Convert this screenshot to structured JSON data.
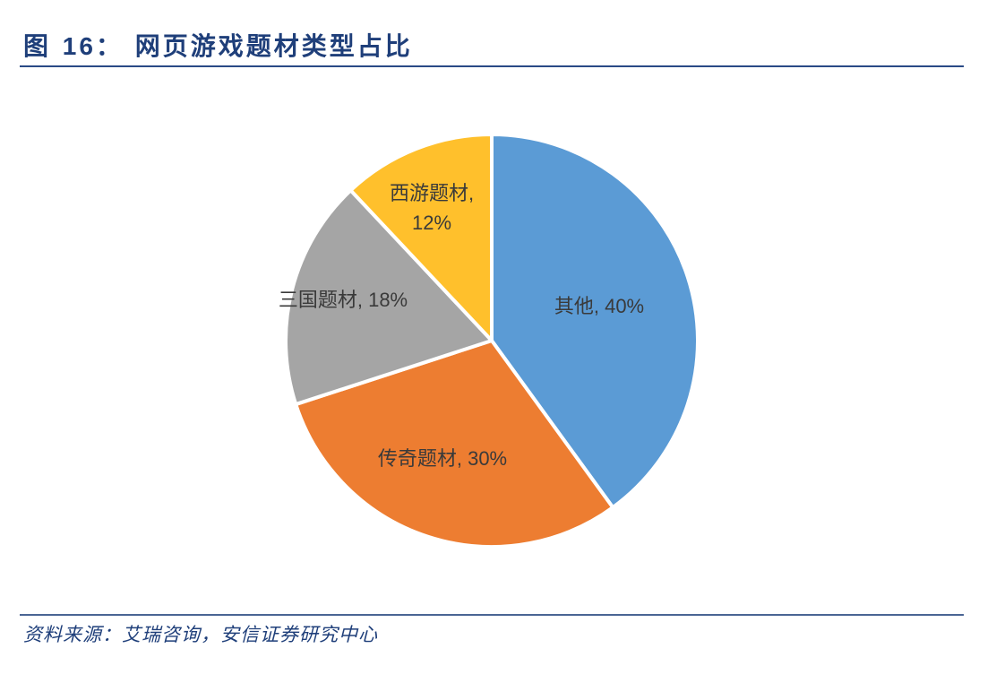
{
  "header": {
    "figure_prefix": "图",
    "figure_number": "16",
    "title_sep": "：",
    "title": "网页游戏题材类型占比"
  },
  "footer": {
    "source": "资料来源：艾瑞咨询，安信证券研究中心"
  },
  "chart_data": {
    "type": "pie",
    "title": "网页游戏题材类型占比",
    "categories": [
      "其他",
      "传奇题材",
      "三国题材",
      "西游题材"
    ],
    "values": [
      40,
      30,
      18,
      12
    ],
    "unit": "%",
    "colors": [
      "#5b9bd5",
      "#ed7d31",
      "#a5a5a5",
      "#ffc02c"
    ],
    "start_angle_deg": 0,
    "direction": "clockwise",
    "data_labels": [
      "其他, 40%",
      "传奇题材, 30%",
      "三国题材, 18%",
      "西游题材, 12%"
    ],
    "legend": "none"
  },
  "labels": {
    "other": "其他, 40%",
    "legend_game": "传奇题材, 30%",
    "three_kingdoms": "三国题材, 18%",
    "journey_west_line1": "西游题材,",
    "journey_west_line2": "12%"
  }
}
